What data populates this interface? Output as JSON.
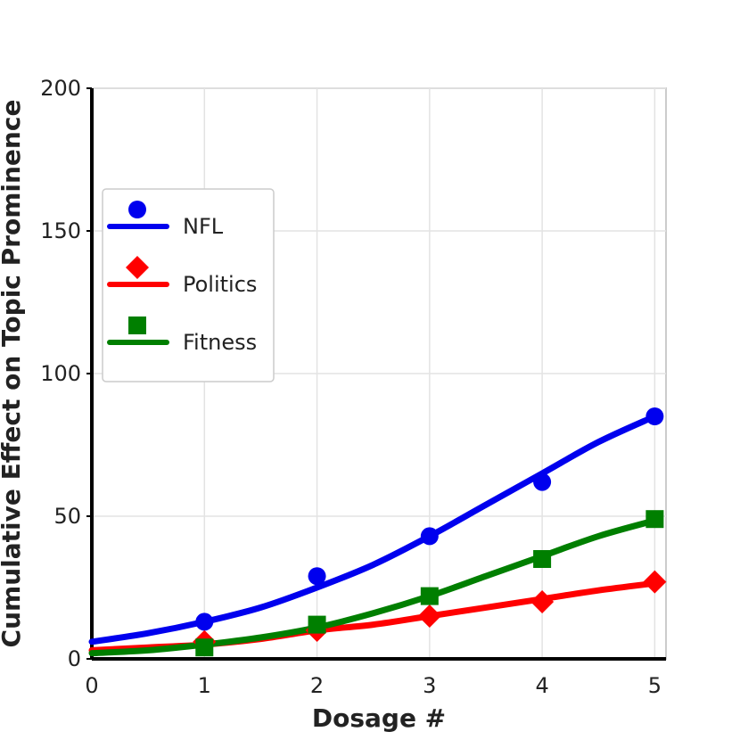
{
  "chart_data": {
    "type": "line",
    "title": "",
    "xlabel": "Dosage #",
    "ylabel": "Cumulative Effect on Topic Prominence",
    "xlim": [
      0,
      5.1
    ],
    "ylim": [
      0,
      200
    ],
    "xticks": [
      "0",
      "1",
      "2",
      "3",
      "4",
      "5"
    ],
    "yticks": [
      "0",
      "50",
      "100",
      "150",
      "200"
    ],
    "grid": true,
    "legend_position": "upper-left",
    "series": [
      {
        "name": "NFL",
        "color": "#0000ee",
        "marker": "circle",
        "points_x": [
          1,
          2,
          3,
          4,
          5
        ],
        "points_y": [
          13,
          29,
          43,
          62,
          85
        ],
        "fit_x": [
          0,
          0.5,
          1,
          1.5,
          2,
          2.5,
          3,
          3.5,
          4,
          4.5,
          5
        ],
        "fit_y": [
          6,
          9,
          13,
          18,
          25,
          33,
          43,
          54,
          65,
          76,
          85
        ]
      },
      {
        "name": "Politics",
        "color": "#ff0000",
        "marker": "diamond",
        "points_x": [
          1,
          2,
          3,
          4,
          5
        ],
        "points_y": [
          6,
          10,
          15,
          20,
          27
        ],
        "fit_x": [
          0,
          0.5,
          1,
          1.5,
          2,
          2.5,
          3,
          3.5,
          4,
          4.5,
          5
        ],
        "fit_y": [
          3,
          4,
          5,
          7,
          10,
          12,
          15,
          18,
          21,
          24,
          26.5
        ]
      },
      {
        "name": "Fitness",
        "color": "#007f00",
        "marker": "square",
        "points_x": [
          1,
          2,
          3,
          4,
          5
        ],
        "points_y": [
          4,
          12,
          22,
          35,
          49
        ],
        "fit_x": [
          0,
          0.5,
          1,
          1.5,
          2,
          2.5,
          3,
          3.5,
          4,
          4.5,
          5
        ],
        "fit_y": [
          2,
          3,
          5,
          7.5,
          11,
          16,
          22,
          29,
          36,
          43,
          48.5
        ]
      }
    ]
  }
}
